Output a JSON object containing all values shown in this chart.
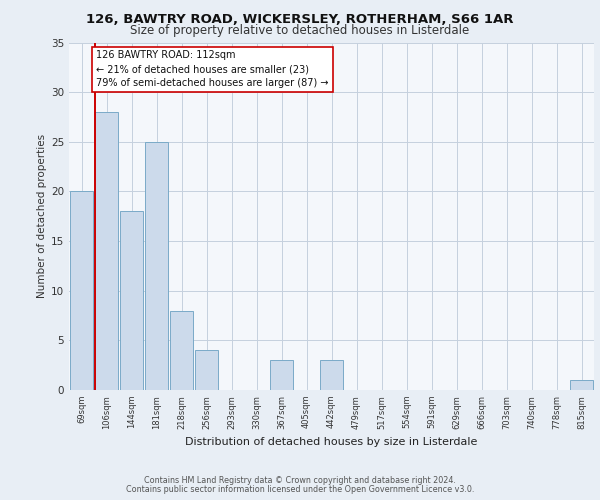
{
  "title": "126, BAWTRY ROAD, WICKERSLEY, ROTHERHAM, S66 1AR",
  "subtitle": "Size of property relative to detached houses in Listerdale",
  "xlabel": "Distribution of detached houses by size in Listerdale",
  "ylabel": "Number of detached properties",
  "categories": [
    "69sqm",
    "106sqm",
    "144sqm",
    "181sqm",
    "218sqm",
    "256sqm",
    "293sqm",
    "330sqm",
    "367sqm",
    "405sqm",
    "442sqm",
    "479sqm",
    "517sqm",
    "554sqm",
    "591sqm",
    "629sqm",
    "666sqm",
    "703sqm",
    "740sqm",
    "778sqm",
    "815sqm"
  ],
  "values": [
    20,
    28,
    18,
    25,
    8,
    4,
    0,
    0,
    3,
    0,
    3,
    0,
    0,
    0,
    0,
    0,
    0,
    0,
    0,
    0,
    1
  ],
  "bar_color": "#ccdaeb",
  "bar_edge_color": "#7aaac8",
  "reference_line_color": "#cc0000",
  "annotation_text": "126 BAWTRY ROAD: 112sqm\n← 21% of detached houses are smaller (23)\n79% of semi-detached houses are larger (87) →",
  "annotation_box_color": "#ffffff",
  "annotation_box_edge_color": "#cc0000",
  "ylim": [
    0,
    35
  ],
  "yticks": [
    0,
    5,
    10,
    15,
    20,
    25,
    30,
    35
  ],
  "footer_line1": "Contains HM Land Registry data © Crown copyright and database right 2024.",
  "footer_line2": "Contains public sector information licensed under the Open Government Licence v3.0.",
  "bg_color": "#e8eef5",
  "plot_bg_color": "#f4f7fb",
  "grid_color": "#c5d0de"
}
